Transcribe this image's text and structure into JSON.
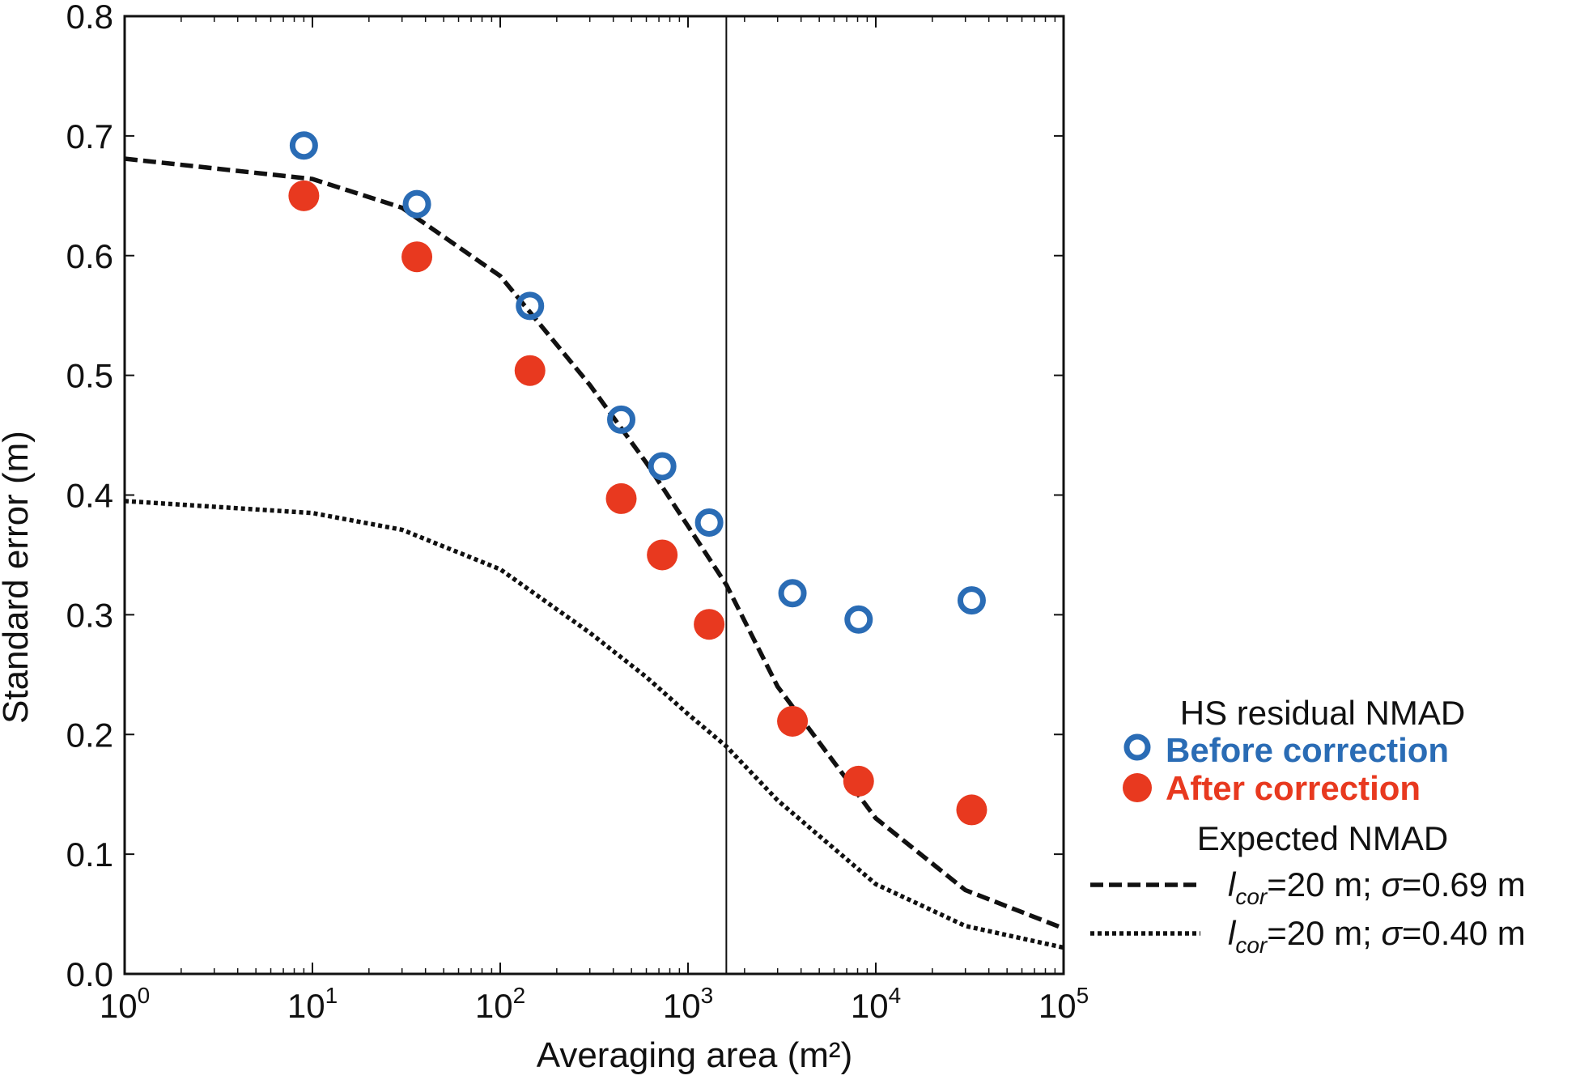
{
  "chart_data": {
    "type": "scatter",
    "title": "",
    "xlabel": "Averaging area (m²)",
    "ylabel": "Standard error (m)",
    "xscale": "log",
    "xlim": [
      1,
      100000
    ],
    "ylim": [
      0.0,
      0.8
    ],
    "x_ticks": [
      {
        "value": 1,
        "base": "10",
        "exp": "0"
      },
      {
        "value": 10,
        "base": "10",
        "exp": "1"
      },
      {
        "value": 100,
        "base": "10",
        "exp": "2"
      },
      {
        "value": 1000,
        "base": "10",
        "exp": "3"
      },
      {
        "value": 10000,
        "base": "10",
        "exp": "4"
      },
      {
        "value": 100000,
        "base": "10",
        "exp": "5"
      }
    ],
    "y_ticks": [
      {
        "value": 0.0,
        "label": "0.0"
      },
      {
        "value": 0.1,
        "label": "0.1"
      },
      {
        "value": 0.2,
        "label": "0.2"
      },
      {
        "value": 0.3,
        "label": "0.3"
      },
      {
        "value": 0.4,
        "label": "0.4"
      },
      {
        "value": 0.5,
        "label": "0.5"
      },
      {
        "value": 0.6,
        "label": "0.6"
      },
      {
        "value": 0.7,
        "label": "0.7"
      },
      {
        "value": 0.8,
        "label": "0.8"
      }
    ],
    "vertical_line_x": 1600,
    "series": [
      {
        "name": "Before correction",
        "color": "#2a6cb5",
        "marker": "open-circle",
        "x": [
          9,
          36,
          144,
          441,
          729,
          1296,
          3600,
          8100,
          32400
        ],
        "y": [
          0.692,
          0.643,
          0.558,
          0.463,
          0.424,
          0.377,
          0.318,
          0.296,
          0.312
        ]
      },
      {
        "name": "After correction",
        "color": "#e8391f",
        "marker": "filled-circle",
        "x": [
          9,
          36,
          144,
          441,
          729,
          1296,
          3600,
          8100,
          32400
        ],
        "y": [
          0.65,
          0.599,
          0.504,
          0.397,
          0.35,
          0.292,
          0.211,
          0.161,
          0.137
        ]
      },
      {
        "name": "lcor=20 m; σ=0.69 m",
        "color": "#111111",
        "style": "dashed",
        "x": [
          1,
          10,
          30,
          100,
          300,
          600,
          1000,
          1600,
          3000,
          10000,
          30000,
          100000
        ],
        "y": [
          0.681,
          0.664,
          0.64,
          0.583,
          0.492,
          0.427,
          0.374,
          0.325,
          0.24,
          0.13,
          0.07,
          0.038
        ]
      },
      {
        "name": "lcor=20 m; σ=0.40 m",
        "color": "#111111",
        "style": "dotted",
        "x": [
          1,
          10,
          30,
          100,
          300,
          600,
          1000,
          1600,
          3000,
          10000,
          30000,
          100000
        ],
        "y": [
          0.395,
          0.385,
          0.371,
          0.338,
          0.285,
          0.248,
          0.217,
          0.19,
          0.145,
          0.075,
          0.04,
          0.022
        ]
      }
    ],
    "legend": {
      "placement": "right",
      "title_1": "HS residual NMAD",
      "before_label": "Before correction",
      "after_label": "After correction",
      "title_2": "Expected NMAD",
      "line1": {
        "sym": "l",
        "sub": "cor",
        "mid": "=20 m; ",
        "sigma": "σ",
        "end": "=0.69 m"
      },
      "line2": {
        "sym": "l",
        "sub": "cor",
        "mid": "=20 m; ",
        "sigma": "σ",
        "end": "=0.40 m"
      }
    }
  }
}
